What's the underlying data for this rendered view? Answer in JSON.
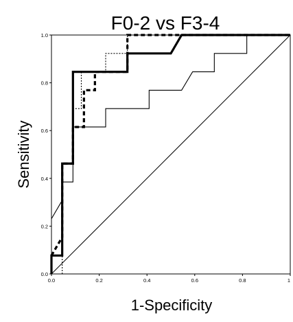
{
  "chart_data": {
    "type": "line",
    "title": "F0-2 vs F3-4",
    "xlabel": "1-Specificity",
    "ylabel": "Sensitivity",
    "xlim": [
      0,
      1
    ],
    "ylim": [
      0,
      1
    ],
    "x_ticks": [
      "0.0",
      "0.2",
      "0.4",
      "0.6",
      "0.8",
      "1"
    ],
    "y_ticks": [
      "0.0",
      "0.2",
      "0.4",
      "0.6",
      "0.8",
      "1.0"
    ],
    "grid": false,
    "legend": "none",
    "series": [
      {
        "style": "thick-solid",
        "points": [
          [
            0,
            0
          ],
          [
            0,
            0.077
          ],
          [
            0.045,
            0.077
          ],
          [
            0.045,
            0.462
          ],
          [
            0.09,
            0.462
          ],
          [
            0.09,
            0.846
          ],
          [
            0.318,
            0.846
          ],
          [
            0.318,
            0.923
          ],
          [
            0.5,
            0.923
          ],
          [
            0.545,
            1.0
          ],
          [
            1,
            1.0
          ]
        ]
      },
      {
        "style": "thick-dashed",
        "points": [
          [
            0,
            0.077
          ],
          [
            0.045,
            0.154
          ],
          [
            0.045,
            0.462
          ],
          [
            0.09,
            0.462
          ],
          [
            0.09,
            0.615
          ],
          [
            0.136,
            0.615
          ],
          [
            0.136,
            0.769
          ],
          [
            0.182,
            0.769
          ],
          [
            0.182,
            0.846
          ],
          [
            0.318,
            0.846
          ],
          [
            0.318,
            1.0
          ],
          [
            0.454,
            1.0
          ],
          [
            1,
            1.0
          ]
        ]
      },
      {
        "style": "thin-dotted",
        "points": [
          [
            0.045,
            0
          ],
          [
            0.045,
            0.462
          ],
          [
            0.09,
            0.462
          ],
          [
            0.09,
            0.692
          ],
          [
            0.125,
            0.692
          ],
          [
            0.125,
            0.846
          ],
          [
            0.227,
            0.846
          ],
          [
            0.227,
            0.923
          ],
          [
            0.318,
            0.923
          ],
          [
            0.318,
            1.0
          ],
          [
            1,
            1.0
          ]
        ]
      },
      {
        "style": "thin-solid",
        "points": [
          [
            0,
            0.231
          ],
          [
            0.045,
            0.308
          ],
          [
            0.045,
            0.385
          ],
          [
            0.09,
            0.385
          ],
          [
            0.09,
            0.615
          ],
          [
            0.227,
            0.615
          ],
          [
            0.227,
            0.692
          ],
          [
            0.409,
            0.692
          ],
          [
            0.409,
            0.769
          ],
          [
            0.545,
            0.769
          ],
          [
            0.591,
            0.846
          ],
          [
            0.682,
            0.846
          ],
          [
            0.682,
            0.923
          ],
          [
            0.818,
            0.923
          ],
          [
            0.818,
            1.0
          ],
          [
            1,
            1.0
          ]
        ]
      }
    ]
  }
}
